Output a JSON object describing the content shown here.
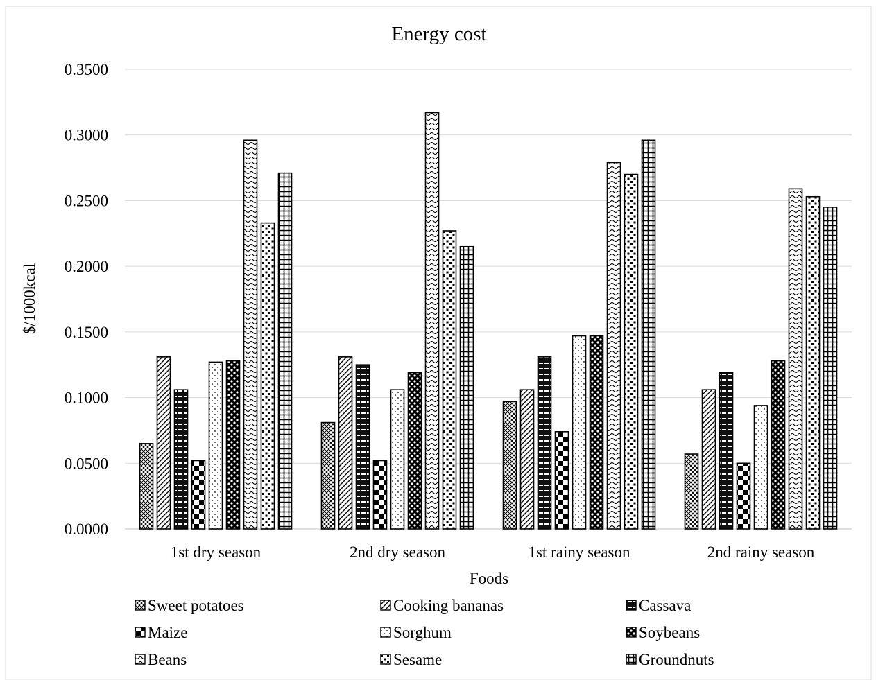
{
  "chart_data": {
    "type": "bar",
    "title": "Energy cost",
    "xlabel": "Foods",
    "ylabel": "$/1000kcal",
    "ylim": [
      0,
      0.35
    ],
    "yticks": [
      "0.0000",
      "0.0500",
      "0.1000",
      "0.1500",
      "0.2000",
      "0.2500",
      "0.3000",
      "0.3500"
    ],
    "categories": [
      "1st dry season",
      "2nd dry season",
      "1st rainy season",
      "2nd rainy season"
    ],
    "grid": true,
    "legend_position": "bottom",
    "series": [
      {
        "name": "Sweet potatoes",
        "values": [
          0.065,
          0.081,
          0.097,
          0.057
        ]
      },
      {
        "name": "Cooking bananas",
        "values": [
          0.131,
          0.131,
          0.106,
          0.106
        ]
      },
      {
        "name": "Cassava",
        "values": [
          0.106,
          0.125,
          0.131,
          0.119
        ]
      },
      {
        "name": "Maize",
        "values": [
          0.052,
          0.052,
          0.074,
          0.05
        ]
      },
      {
        "name": "Sorghum",
        "values": [
          0.127,
          0.106,
          0.147,
          0.094
        ]
      },
      {
        "name": "Soybeans",
        "values": [
          0.128,
          0.119,
          0.147,
          0.128
        ]
      },
      {
        "name": "Beans",
        "values": [
          0.296,
          0.317,
          0.279,
          0.259
        ]
      },
      {
        "name": "Sesame",
        "values": [
          0.233,
          0.227,
          0.27,
          0.253
        ]
      },
      {
        "name": "Groundnuts",
        "values": [
          0.271,
          0.215,
          0.296,
          0.245
        ]
      }
    ]
  }
}
